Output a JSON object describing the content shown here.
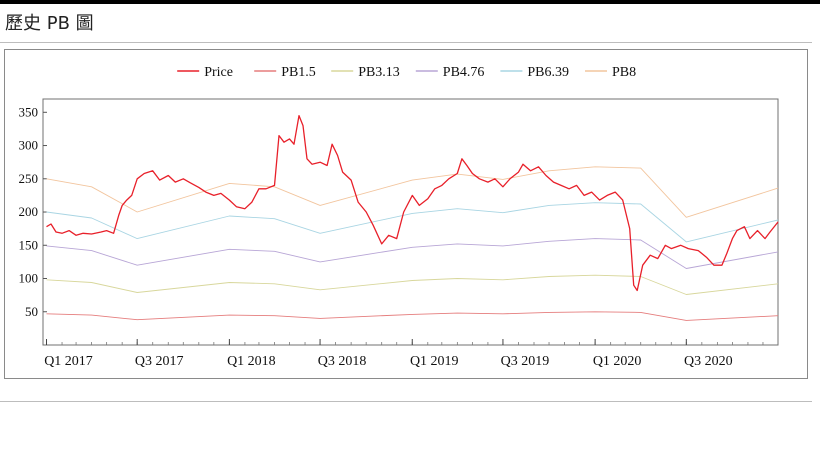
{
  "page": {
    "title": "歷史 PB 圖"
  },
  "chart_data": {
    "type": "line",
    "title": "",
    "xlabel": "",
    "ylabel": "",
    "ylim": [
      0,
      370
    ],
    "xlim": [
      "2016-12-25",
      "2020-12-31"
    ],
    "yticks": [
      50,
      100,
      150,
      200,
      250,
      300,
      350
    ],
    "xticks": [
      {
        "label": "Q1 2017",
        "date": "2017-01-01"
      },
      {
        "label": "Q3 2017",
        "date": "2017-07-01"
      },
      {
        "label": "Q1 2018",
        "date": "2018-01-01"
      },
      {
        "label": "Q3 2018",
        "date": "2018-07-01"
      },
      {
        "label": "Q1 2019",
        "date": "2019-01-01"
      },
      {
        "label": "Q3 2019",
        "date": "2019-07-01"
      },
      {
        "label": "Q1 2020",
        "date": "2020-01-01"
      },
      {
        "label": "Q3 2020",
        "date": "2020-07-01"
      }
    ],
    "legend_position": "top-center",
    "grid": false,
    "series": [
      {
        "name": "Price",
        "color": "#e8202a",
        "width": 1.3,
        "points": [
          [
            "2017-01-01",
            178
          ],
          [
            "2017-01-10",
            182
          ],
          [
            "2017-01-20",
            170
          ],
          [
            "2017-02-01",
            168
          ],
          [
            "2017-02-15",
            172
          ],
          [
            "2017-03-01",
            165
          ],
          [
            "2017-03-15",
            168
          ],
          [
            "2017-04-01",
            167
          ],
          [
            "2017-04-20",
            170
          ],
          [
            "2017-05-01",
            172
          ],
          [
            "2017-05-15",
            168
          ],
          [
            "2017-05-25",
            195
          ],
          [
            "2017-06-01",
            210
          ],
          [
            "2017-06-10",
            218
          ],
          [
            "2017-06-20",
            225
          ],
          [
            "2017-07-01",
            250
          ],
          [
            "2017-07-15",
            258
          ],
          [
            "2017-08-01",
            262
          ],
          [
            "2017-08-15",
            248
          ],
          [
            "2017-09-01",
            255
          ],
          [
            "2017-09-15",
            245
          ],
          [
            "2017-10-01",
            250
          ],
          [
            "2017-10-15",
            244
          ],
          [
            "2017-11-01",
            237
          ],
          [
            "2017-11-15",
            230
          ],
          [
            "2017-12-01",
            225
          ],
          [
            "2017-12-15",
            228
          ],
          [
            "2018-01-01",
            218
          ],
          [
            "2018-01-15",
            208
          ],
          [
            "2018-02-01",
            205
          ],
          [
            "2018-02-15",
            215
          ],
          [
            "2018-03-01",
            235
          ],
          [
            "2018-03-15",
            235
          ],
          [
            "2018-04-01",
            240
          ],
          [
            "2018-04-10",
            315
          ],
          [
            "2018-04-20",
            305
          ],
          [
            "2018-05-01",
            310
          ],
          [
            "2018-05-10",
            302
          ],
          [
            "2018-05-20",
            345
          ],
          [
            "2018-05-28",
            330
          ],
          [
            "2018-06-05",
            280
          ],
          [
            "2018-06-15",
            272
          ],
          [
            "2018-07-01",
            275
          ],
          [
            "2018-07-15",
            270
          ],
          [
            "2018-07-25",
            302
          ],
          [
            "2018-08-05",
            285
          ],
          [
            "2018-08-15",
            260
          ],
          [
            "2018-09-01",
            248
          ],
          [
            "2018-09-15",
            215
          ],
          [
            "2018-10-01",
            200
          ],
          [
            "2018-10-15",
            180
          ],
          [
            "2018-11-01",
            152
          ],
          [
            "2018-11-15",
            165
          ],
          [
            "2018-12-01",
            160
          ],
          [
            "2018-12-15",
            200
          ],
          [
            "2019-01-01",
            225
          ],
          [
            "2019-01-15",
            210
          ],
          [
            "2019-02-01",
            220
          ],
          [
            "2019-02-15",
            235
          ],
          [
            "2019-03-01",
            240
          ],
          [
            "2019-03-15",
            250
          ],
          [
            "2019-04-01",
            258
          ],
          [
            "2019-04-10",
            280
          ],
          [
            "2019-04-20",
            270
          ],
          [
            "2019-05-01",
            258
          ],
          [
            "2019-05-15",
            250
          ],
          [
            "2019-06-01",
            245
          ],
          [
            "2019-06-15",
            250
          ],
          [
            "2019-07-01",
            238
          ],
          [
            "2019-07-15",
            250
          ],
          [
            "2019-08-01",
            260
          ],
          [
            "2019-08-10",
            272
          ],
          [
            "2019-08-25",
            262
          ],
          [
            "2019-09-10",
            268
          ],
          [
            "2019-09-25",
            255
          ],
          [
            "2019-10-10",
            245
          ],
          [
            "2019-10-25",
            240
          ],
          [
            "2019-11-10",
            235
          ],
          [
            "2019-11-25",
            240
          ],
          [
            "2019-12-10",
            225
          ],
          [
            "2019-12-25",
            230
          ],
          [
            "2020-01-10",
            218
          ],
          [
            "2020-01-25",
            225
          ],
          [
            "2020-02-10",
            230
          ],
          [
            "2020-02-25",
            218
          ],
          [
            "2020-03-10",
            175
          ],
          [
            "2020-03-18",
            90
          ],
          [
            "2020-03-25",
            82
          ],
          [
            "2020-04-05",
            120
          ],
          [
            "2020-04-20",
            135
          ],
          [
            "2020-05-05",
            130
          ],
          [
            "2020-05-20",
            150
          ],
          [
            "2020-06-01",
            145
          ],
          [
            "2020-06-20",
            150
          ],
          [
            "2020-07-05",
            145
          ],
          [
            "2020-07-25",
            142
          ],
          [
            "2020-08-10",
            132
          ],
          [
            "2020-08-25",
            120
          ],
          [
            "2020-09-10",
            120
          ],
          [
            "2020-09-20",
            138
          ],
          [
            "2020-10-01",
            160
          ],
          [
            "2020-10-10",
            172
          ],
          [
            "2020-10-25",
            178
          ],
          [
            "2020-11-05",
            160
          ],
          [
            "2020-11-20",
            172
          ],
          [
            "2020-12-05",
            160
          ],
          [
            "2020-12-15",
            170
          ],
          [
            "2020-12-31",
            185
          ]
        ]
      },
      {
        "name": "PB1.5",
        "color": "#e57d7d",
        "width": 0.9,
        "points": [
          [
            "2017-01-01",
            47
          ],
          [
            "2017-04-01",
            45
          ],
          [
            "2017-07-01",
            38
          ],
          [
            "2018-01-01",
            45
          ],
          [
            "2018-04-01",
            44
          ],
          [
            "2018-07-01",
            40
          ],
          [
            "2019-01-01",
            46
          ],
          [
            "2019-04-01",
            48
          ],
          [
            "2019-07-01",
            47
          ],
          [
            "2019-10-01",
            49
          ],
          [
            "2020-01-01",
            50
          ],
          [
            "2020-04-01",
            49
          ],
          [
            "2020-07-01",
            37
          ],
          [
            "2020-12-31",
            44
          ]
        ]
      },
      {
        "name": "PB3.13",
        "color": "#d8d79c",
        "width": 0.9,
        "points": [
          [
            "2017-01-01",
            98
          ],
          [
            "2017-04-01",
            94
          ],
          [
            "2017-07-01",
            79
          ],
          [
            "2018-01-01",
            94
          ],
          [
            "2018-04-01",
            92
          ],
          [
            "2018-07-01",
            83
          ],
          [
            "2019-01-01",
            97
          ],
          [
            "2019-04-01",
            100
          ],
          [
            "2019-07-01",
            98
          ],
          [
            "2019-10-01",
            103
          ],
          [
            "2020-01-01",
            105
          ],
          [
            "2020-04-01",
            103
          ],
          [
            "2020-07-01",
            76
          ],
          [
            "2020-12-31",
            92
          ]
        ]
      },
      {
        "name": "PB4.76",
        "color": "#b8a6d6",
        "width": 0.9,
        "points": [
          [
            "2017-01-01",
            149
          ],
          [
            "2017-04-01",
            142
          ],
          [
            "2017-07-01",
            120
          ],
          [
            "2018-01-01",
            144
          ],
          [
            "2018-04-01",
            141
          ],
          [
            "2018-07-01",
            125
          ],
          [
            "2019-01-01",
            147
          ],
          [
            "2019-04-01",
            152
          ],
          [
            "2019-07-01",
            149
          ],
          [
            "2019-10-01",
            156
          ],
          [
            "2020-01-01",
            160
          ],
          [
            "2020-04-01",
            158
          ],
          [
            "2020-07-01",
            115
          ],
          [
            "2020-12-31",
            140
          ]
        ]
      },
      {
        "name": "PB6.39",
        "color": "#a9d5e3",
        "width": 0.9,
        "points": [
          [
            "2017-01-01",
            200
          ],
          [
            "2017-04-01",
            191
          ],
          [
            "2017-07-01",
            160
          ],
          [
            "2018-01-01",
            194
          ],
          [
            "2018-04-01",
            190
          ],
          [
            "2018-07-01",
            168
          ],
          [
            "2019-01-01",
            198
          ],
          [
            "2019-04-01",
            205
          ],
          [
            "2019-07-01",
            199
          ],
          [
            "2019-10-01",
            210
          ],
          [
            "2020-01-01",
            214
          ],
          [
            "2020-04-01",
            212
          ],
          [
            "2020-07-01",
            155
          ],
          [
            "2020-12-31",
            188
          ]
        ]
      },
      {
        "name": "PB8",
        "color": "#f2c59e",
        "width": 0.9,
        "points": [
          [
            "2017-01-01",
            250
          ],
          [
            "2017-04-01",
            238
          ],
          [
            "2017-07-01",
            200
          ],
          [
            "2018-01-01",
            243
          ],
          [
            "2018-04-01",
            238
          ],
          [
            "2018-07-01",
            210
          ],
          [
            "2019-01-01",
            248
          ],
          [
            "2019-04-01",
            257
          ],
          [
            "2019-07-01",
            249
          ],
          [
            "2019-10-01",
            262
          ],
          [
            "2020-01-01",
            268
          ],
          [
            "2020-04-01",
            266
          ],
          [
            "2020-07-01",
            192
          ],
          [
            "2020-12-31",
            236
          ]
        ]
      }
    ]
  }
}
